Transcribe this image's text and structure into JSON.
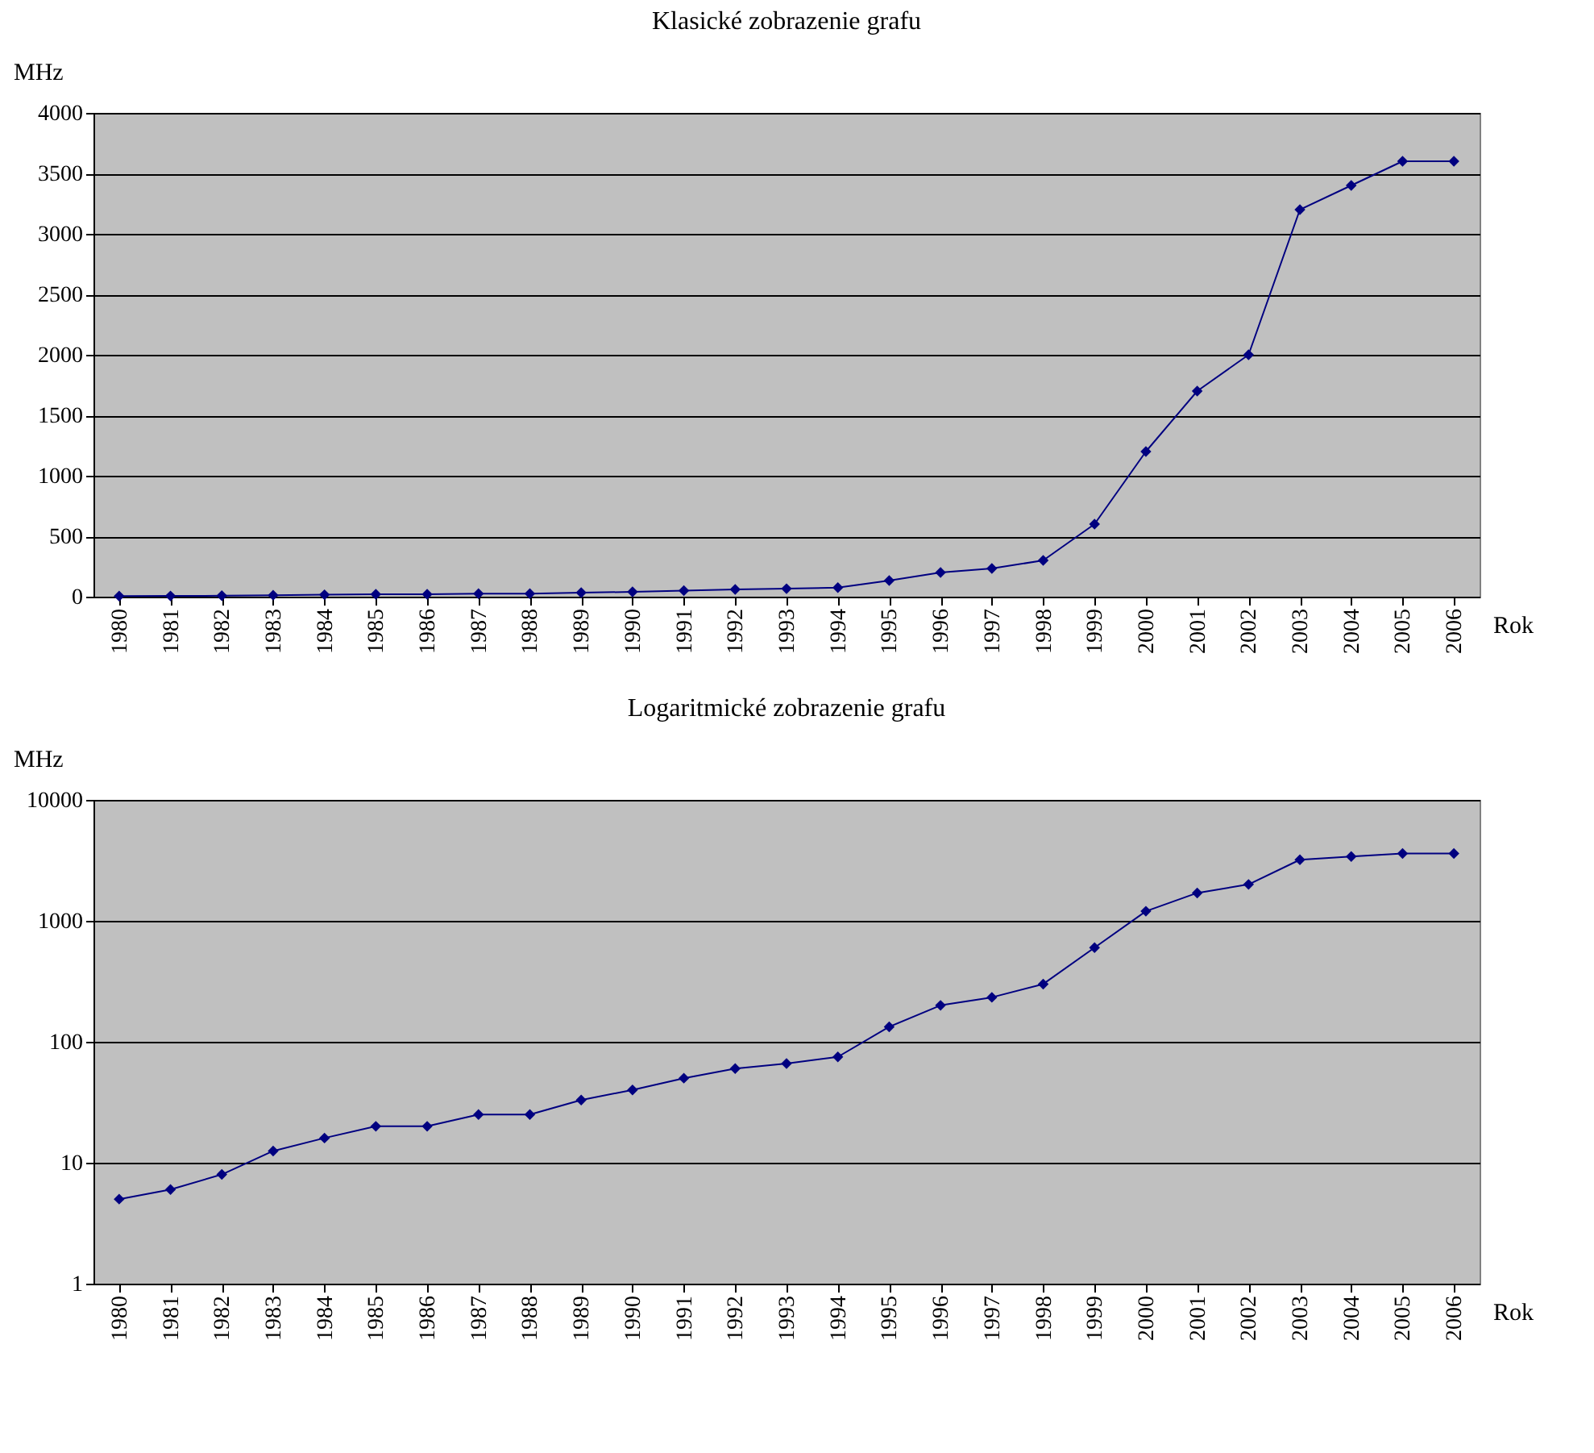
{
  "chart_data": [
    {
      "type": "line",
      "title": "Klasické zobrazenie grafu",
      "ylabel": "MHz",
      "xlabel": "Rok",
      "categories": [
        "1980",
        "1981",
        "1982",
        "1983",
        "1984",
        "1985",
        "1986",
        "1987",
        "1988",
        "1989",
        "1990",
        "1991",
        "1992",
        "1993",
        "1994",
        "1995",
        "1996",
        "1997",
        "1998",
        "1999",
        "2000",
        "2001",
        "2002",
        "2003",
        "2004",
        "2005",
        "2006"
      ],
      "series": [
        {
          "color": "#000080",
          "values": [
            5,
            6,
            8,
            12.5,
            16,
            20,
            20,
            25,
            25,
            33,
            40,
            50,
            60,
            66,
            75,
            133,
            200,
            233,
            300,
            600,
            1200,
            1700,
            2000,
            3200,
            3400,
            3600,
            3600
          ]
        }
      ],
      "ylim": [
        0,
        4000
      ],
      "yticks": [
        0,
        500,
        1000,
        1500,
        2000,
        2500,
        3000,
        3500,
        4000
      ],
      "grid": "y",
      "legend": false,
      "marker": "diamond",
      "line_style": "solid"
    },
    {
      "type": "line",
      "title": "Logaritmické zobrazenie grafu",
      "ylabel": "MHz",
      "xlabel": "Rok",
      "categories": [
        "1980",
        "1981",
        "1982",
        "1983",
        "1984",
        "1985",
        "1986",
        "1987",
        "1988",
        "1989",
        "1990",
        "1991",
        "1992",
        "1993",
        "1994",
        "1995",
        "1996",
        "1997",
        "1998",
        "1999",
        "2000",
        "2001",
        "2002",
        "2003",
        "2004",
        "2005",
        "2006"
      ],
      "series": [
        {
          "color": "#000080",
          "values": [
            5,
            6,
            8,
            12.5,
            16,
            20,
            20,
            25,
            25,
            33,
            40,
            50,
            60,
            66,
            75,
            133,
            200,
            233,
            300,
            600,
            1200,
            1700,
            2000,
            3200,
            3400,
            3600,
            3600
          ]
        }
      ],
      "ylim": [
        1,
        10000
      ],
      "yticks": [
        1,
        10,
        100,
        1000,
        10000
      ],
      "log": true,
      "grid": "y",
      "legend": false,
      "marker": "diamond",
      "line_style": "solid"
    }
  ]
}
